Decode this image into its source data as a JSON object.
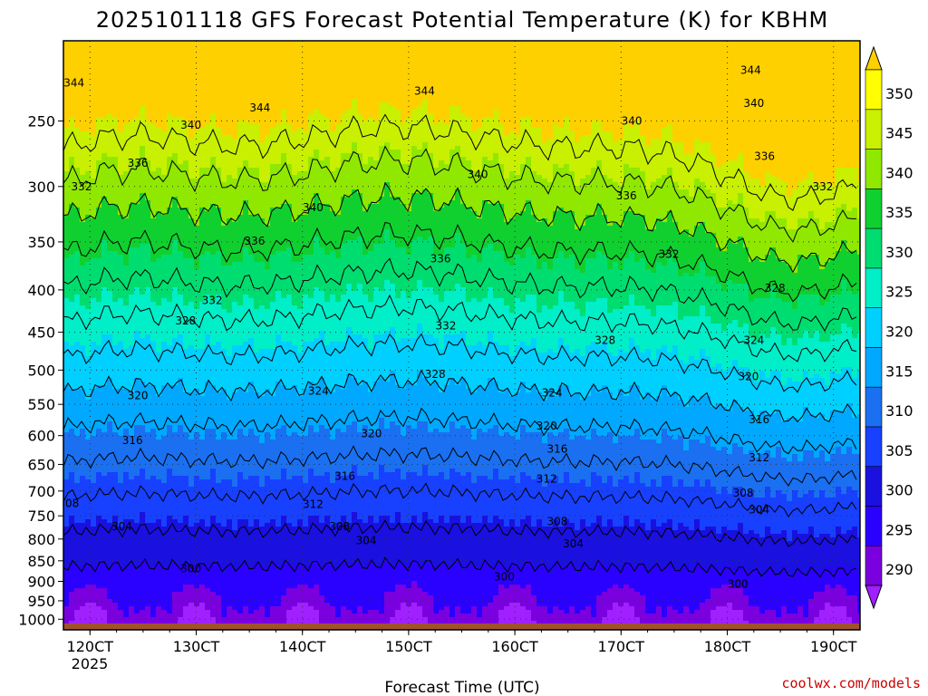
{
  "title": "2025101118 GFS Forecast Potential Temperature (K) for KBHM",
  "credit": "coolwx.com/models",
  "chart_data": {
    "type": "heatmap",
    "title": "2025101118 GFS Forecast Potential Temperature (K) for KBHM",
    "xlabel": "Forecast Time (UTC)",
    "ylabel": "",
    "x_ticks": [
      "120CT",
      "130CT",
      "140CT",
      "150CT",
      "160CT",
      "170CT",
      "180CT",
      "190CT"
    ],
    "x_year_label": "2025",
    "xlim_days": [
      11.75,
      19.25
    ],
    "y_ticks": [
      250,
      300,
      350,
      400,
      450,
      500,
      550,
      600,
      650,
      700,
      750,
      800,
      850,
      900,
      950,
      1000
    ],
    "ylim_hpa": [
      1030,
      200
    ],
    "ground_hpa": 1012,
    "colorbar": {
      "levels": [
        290,
        295,
        300,
        305,
        310,
        315,
        320,
        325,
        330,
        335,
        340,
        345,
        350
      ],
      "labels": [
        "290",
        "295",
        "300",
        "305",
        "310",
        "315",
        "320",
        "325",
        "330",
        "335",
        "340",
        "345",
        "350"
      ],
      "colors": [
        "#7a00e0",
        "#2a00ff",
        "#1a10e0",
        "#1840ff",
        "#1a70f0",
        "#00a8ff",
        "#00d0ff",
        "#00eec8",
        "#00dd70",
        "#10d030",
        "#90e800",
        "#c8f000",
        "#ffff00"
      ],
      "low_color": "#a020ff",
      "high_color": "#ffd000"
    },
    "contour_labels": [
      {
        "text": "344",
        "day": 11.85,
        "p": 225
      },
      {
        "text": "344",
        "day": 13.6,
        "p": 241
      },
      {
        "text": "344",
        "day": 15.15,
        "p": 230
      },
      {
        "text": "344",
        "day": 18.22,
        "p": 217
      },
      {
        "text": "340",
        "day": 12.95,
        "p": 253
      },
      {
        "text": "340",
        "day": 15.65,
        "p": 290
      },
      {
        "text": "340",
        "day": 14.1,
        "p": 318
      },
      {
        "text": "340",
        "day": 17.1,
        "p": 250
      },
      {
        "text": "340",
        "day": 18.25,
        "p": 238
      },
      {
        "text": "336",
        "day": 12.45,
        "p": 281
      },
      {
        "text": "336",
        "day": 13.55,
        "p": 349
      },
      {
        "text": "336",
        "day": 15.3,
        "p": 367
      },
      {
        "text": "336",
        "day": 17.05,
        "p": 308
      },
      {
        "text": "336",
        "day": 18.35,
        "p": 276
      },
      {
        "text": "332",
        "day": 11.92,
        "p": 300
      },
      {
        "text": "332",
        "day": 13.15,
        "p": 412
      },
      {
        "text": "332",
        "day": 15.35,
        "p": 442
      },
      {
        "text": "332",
        "day": 17.45,
        "p": 362
      },
      {
        "text": "332",
        "day": 18.9,
        "p": 300
      },
      {
        "text": "328",
        "day": 12.9,
        "p": 436
      },
      {
        "text": "328",
        "day": 15.25,
        "p": 506
      },
      {
        "text": "328",
        "day": 16.85,
        "p": 460
      },
      {
        "text": "328",
        "day": 18.45,
        "p": 398
      },
      {
        "text": "324",
        "day": 14.15,
        "p": 530
      },
      {
        "text": "324",
        "day": 16.35,
        "p": 533
      },
      {
        "text": "324",
        "day": 18.25,
        "p": 460
      },
      {
        "text": "320",
        "day": 12.45,
        "p": 537
      },
      {
        "text": "320",
        "day": 14.65,
        "p": 597
      },
      {
        "text": "320",
        "day": 16.3,
        "p": 584
      },
      {
        "text": "320",
        "day": 18.2,
        "p": 509
      },
      {
        "text": "316",
        "day": 12.4,
        "p": 608
      },
      {
        "text": "316",
        "day": 14.4,
        "p": 672
      },
      {
        "text": "316",
        "day": 16.4,
        "p": 623
      },
      {
        "text": "316",
        "day": 18.3,
        "p": 574
      },
      {
        "text": "312",
        "day": 14.1,
        "p": 726
      },
      {
        "text": "312",
        "day": 16.3,
        "p": 677
      },
      {
        "text": "312",
        "day": 18.3,
        "p": 638
      },
      {
        "text": "308",
        "day": 11.8,
        "p": 725
      },
      {
        "text": "308",
        "day": 14.35,
        "p": 773
      },
      {
        "text": "308",
        "day": 16.4,
        "p": 762
      },
      {
        "text": "308",
        "day": 18.15,
        "p": 704
      },
      {
        "text": "304",
        "day": 12.3,
        "p": 773
      },
      {
        "text": "304",
        "day": 14.6,
        "p": 803
      },
      {
        "text": "304",
        "day": 16.55,
        "p": 811
      },
      {
        "text": "304",
        "day": 18.3,
        "p": 737
      },
      {
        "text": "300",
        "day": 12.95,
        "p": 869
      },
      {
        "text": "300",
        "day": 15.9,
        "p": 889
      },
      {
        "text": "300",
        "day": 18.1,
        "p": 907
      }
    ]
  }
}
